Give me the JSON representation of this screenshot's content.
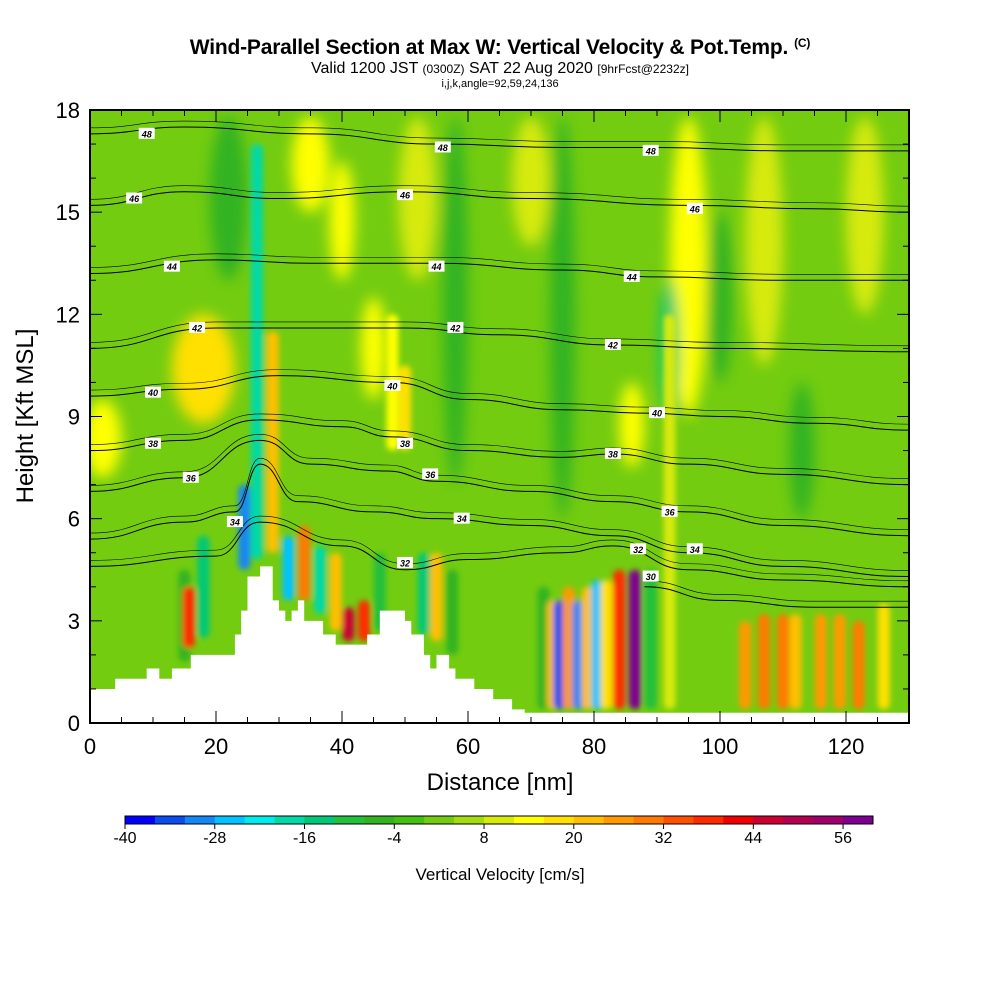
{
  "title": "Wind-Parallel Section at Max W: Vertical Velocity & Pot.Temp.",
  "title_mark": "(C)",
  "subtitle_main": "Valid 1200 JST",
  "subtitle_z": "(0300Z)",
  "subtitle_date": "SAT 22 Aug 2020",
  "subtitle_fcst": "[9hrFcst@2232z]",
  "params": "i,j,k,angle=92,59,24,136",
  "chart_data": {
    "type": "heatmap",
    "xlabel": "Distance [nm]",
    "ylabel": "Height [Kft MSL]",
    "xlim": [
      0,
      130
    ],
    "ylim": [
      0,
      18
    ],
    "x_ticks": [
      "0",
      "20",
      "40",
      "60",
      "80",
      "100",
      "120"
    ],
    "y_ticks": [
      "0",
      "3",
      "6",
      "9",
      "12",
      "15",
      "18"
    ],
    "colorbar": {
      "title": "Vertical Velocity [cm/s]",
      "min": -40,
      "max": 60,
      "step": 4,
      "tick_labels": [
        "-40",
        "-28",
        "-16",
        "-4",
        "8",
        "20",
        "32",
        "44",
        "56"
      ],
      "colors": [
        "#0000ff",
        "#0a4cf0",
        "#1487f5",
        "#00c3ff",
        "#00ecec",
        "#00d9a8",
        "#00c878",
        "#22c03c",
        "#33b320",
        "#44c010",
        "#73cc10",
        "#a4dc10",
        "#d7ea08",
        "#ffff00",
        "#ffe000",
        "#ffc000",
        "#ff9a00",
        "#ff7a00",
        "#ff5000",
        "#ff2a00",
        "#f00000",
        "#cc0033",
        "#b40050",
        "#a0006e",
        "#7d0090"
      ]
    },
    "terrain_kft": [
      [
        0,
        1
      ],
      [
        4,
        1
      ],
      [
        4,
        1.3
      ],
      [
        9,
        1.3
      ],
      [
        9,
        1.6
      ],
      [
        11,
        1.6
      ],
      [
        11,
        1.3
      ],
      [
        13,
        1.3
      ],
      [
        13,
        1.6
      ],
      [
        16,
        1.6
      ],
      [
        16,
        2
      ],
      [
        23,
        2
      ],
      [
        23,
        2.6
      ],
      [
        24,
        2.6
      ],
      [
        24,
        3.3
      ],
      [
        25,
        3.3
      ],
      [
        25,
        4.3
      ],
      [
        27,
        4.3
      ],
      [
        27,
        4.6
      ],
      [
        29,
        4.6
      ],
      [
        29,
        3.6
      ],
      [
        30,
        3.6
      ],
      [
        30,
        3.3
      ],
      [
        31,
        3.3
      ],
      [
        31,
        3
      ],
      [
        32,
        3
      ],
      [
        32,
        3.3
      ],
      [
        33,
        3.3
      ],
      [
        33,
        3.6
      ],
      [
        34,
        3.6
      ],
      [
        34,
        3
      ],
      [
        37,
        3
      ],
      [
        37,
        2.6
      ],
      [
        39,
        2.6
      ],
      [
        39,
        2.3
      ],
      [
        44,
        2.3
      ],
      [
        44,
        2.6
      ],
      [
        46,
        2.6
      ],
      [
        46,
        3.3
      ],
      [
        50,
        3.3
      ],
      [
        50,
        3
      ],
      [
        51,
        3
      ],
      [
        51,
        2.6
      ],
      [
        53,
        2.6
      ],
      [
        53,
        2
      ],
      [
        54,
        2
      ],
      [
        54,
        1.6
      ],
      [
        55,
        1.6
      ],
      [
        55,
        2
      ],
      [
        57,
        2
      ],
      [
        57,
        1.6
      ],
      [
        58,
        1.6
      ],
      [
        58,
        1.3
      ],
      [
        61,
        1.3
      ],
      [
        61,
        1
      ],
      [
        64,
        1
      ],
      [
        64,
        0.7
      ],
      [
        67,
        0.7
      ],
      [
        67,
        0.4
      ],
      [
        69,
        0.4
      ],
      [
        69,
        0.3
      ],
      [
        130,
        0.3
      ]
    ],
    "wave_columns": [
      {
        "x": 15,
        "w": -6,
        "bottom": 1.8,
        "top": 4.5
      },
      {
        "x": 15.7,
        "w": 36,
        "bottom": 2.2,
        "top": 4.0
      },
      {
        "x": 18,
        "w": -14,
        "bottom": 2.5,
        "top": 5.5
      },
      {
        "x": 24.5,
        "w": -30,
        "bottom": 4.5,
        "top": 7.0
      },
      {
        "x": 26.5,
        "w": -20,
        "bottom": 4.8,
        "top": 17.0
      },
      {
        "x": 29,
        "w": 20,
        "bottom": 5.0,
        "top": 11.5
      },
      {
        "x": 31.5,
        "w": -28,
        "bottom": 3.6,
        "top": 5.5
      },
      {
        "x": 34,
        "w": 30,
        "bottom": 3.6,
        "top": 5.8
      },
      {
        "x": 36.5,
        "w": -18,
        "bottom": 3.2,
        "top": 5.2
      },
      {
        "x": 39,
        "w": 20,
        "bottom": 2.7,
        "top": 5.0
      },
      {
        "x": 41,
        "w": 44,
        "bottom": 2.4,
        "top": 3.4
      },
      {
        "x": 43.5,
        "w": 36,
        "bottom": 2.4,
        "top": 3.6
      },
      {
        "x": 46,
        "w": -10,
        "bottom": 2.7,
        "top": 5.0
      },
      {
        "x": 48,
        "w": 12,
        "bottom": 8.0,
        "top": 12.0
      },
      {
        "x": 50,
        "w": 16,
        "bottom": 8.0,
        "top": 10.5
      },
      {
        "x": 53,
        "w": -14,
        "bottom": 2.6,
        "top": 5.0
      },
      {
        "x": 55,
        "w": 20,
        "bottom": 2.4,
        "top": 5.0
      },
      {
        "x": 57.5,
        "w": -8,
        "bottom": 2.0,
        "top": 4.5
      },
      {
        "x": 72,
        "w": -8,
        "bottom": 0.4,
        "top": 4.0
      },
      {
        "x": 73.5,
        "w": 20,
        "bottom": 0.4,
        "top": 3.6
      },
      {
        "x": 74.5,
        "w": -36,
        "bottom": 0.4,
        "top": 3.6
      },
      {
        "x": 76,
        "w": 24,
        "bottom": 0.4,
        "top": 4.0
      },
      {
        "x": 77.5,
        "w": -32,
        "bottom": 0.4,
        "top": 3.6
      },
      {
        "x": 79,
        "w": 20,
        "bottom": 0.4,
        "top": 4.0
      },
      {
        "x": 80.5,
        "w": -28,
        "bottom": 0.4,
        "top": 4.2
      },
      {
        "x": 82,
        "w": 16,
        "bottom": 0.4,
        "top": 4.2
      },
      {
        "x": 84,
        "w": 36,
        "bottom": 0.4,
        "top": 4.5
      },
      {
        "x": 86.5,
        "w": 56,
        "bottom": 0.4,
        "top": 4.5
      },
      {
        "x": 89,
        "w": -12,
        "bottom": 0.4,
        "top": 4.5
      },
      {
        "x": 92,
        "w": 8,
        "bottom": 0.4,
        "top": 12.0
      },
      {
        "x": 104,
        "w": 24,
        "bottom": 0.4,
        "top": 3.0
      },
      {
        "x": 107,
        "w": 28,
        "bottom": 0.4,
        "top": 3.2
      },
      {
        "x": 110,
        "w": 28,
        "bottom": 0.4,
        "top": 3.2
      },
      {
        "x": 112,
        "w": 20,
        "bottom": 0.4,
        "top": 3.2
      },
      {
        "x": 116,
        "w": 24,
        "bottom": 0.4,
        "top": 3.2
      },
      {
        "x": 119,
        "w": 24,
        "bottom": 0.4,
        "top": 3.2
      },
      {
        "x": 122,
        "w": 28,
        "bottom": 0.4,
        "top": 3.0
      },
      {
        "x": 126,
        "w": 16,
        "bottom": 0.4,
        "top": 3.5
      }
    ],
    "broad_features": [
      {
        "x": 2,
        "w": 12,
        "bottom": 7.2,
        "top": 9.5,
        "halfwidth": 3
      },
      {
        "x": 18,
        "w": 16,
        "bottom": 8.8,
        "top": 12.0,
        "halfwidth": 5
      },
      {
        "x": 40,
        "w": 12,
        "bottom": 13.0,
        "top": 16.5,
        "halfwidth": 2
      },
      {
        "x": 45,
        "w": 12,
        "bottom": 9.5,
        "top": 12.5,
        "halfwidth": 2
      },
      {
        "x": 35,
        "w": 12,
        "bottom": 15.0,
        "top": 17.8,
        "halfwidth": 3
      },
      {
        "x": 52,
        "w": 8,
        "bottom": 13.0,
        "top": 17.8,
        "halfwidth": 3
      },
      {
        "x": 70,
        "w": 8,
        "bottom": 14.0,
        "top": 17.8,
        "halfwidth": 3
      },
      {
        "x": 86,
        "w": 12,
        "bottom": 7.5,
        "top": 10.0,
        "halfwidth": 2
      },
      {
        "x": 95,
        "w": 12,
        "bottom": 9.0,
        "top": 17.8,
        "halfwidth": 3
      },
      {
        "x": 22,
        "w": -8,
        "bottom": 13.0,
        "top": 17.8,
        "halfwidth": 3
      },
      {
        "x": 58,
        "w": -6,
        "bottom": 7.0,
        "top": 17.8,
        "halfwidth": 2
      },
      {
        "x": 75,
        "w": -6,
        "bottom": 6.0,
        "top": 17.8,
        "halfwidth": 2
      },
      {
        "x": 92,
        "w": -14,
        "bottom": 9.0,
        "top": 13.0,
        "halfwidth": 1.5
      },
      {
        "x": 107,
        "w": 8,
        "bottom": 10.5,
        "top": 17.8,
        "halfwidth": 3
      },
      {
        "x": 100,
        "w": -8,
        "bottom": 10.0,
        "top": 15.0,
        "halfwidth": 2
      },
      {
        "x": 113,
        "w": -6,
        "bottom": 6.0,
        "top": 10.0,
        "halfwidth": 2
      },
      {
        "x": 123,
        "w": 8,
        "bottom": 12.0,
        "top": 17.8,
        "halfwidth": 3
      }
    ],
    "isentropes": [
      {
        "label": "30",
        "points": [
          [
            88,
            4.0
          ],
          [
            100,
            3.6
          ],
          [
            115,
            3.4
          ],
          [
            130,
            3.4
          ]
        ]
      },
      {
        "label": "32",
        "points": [
          [
            0,
            4.6
          ],
          [
            20,
            4.9
          ],
          [
            27,
            5.9
          ],
          [
            40,
            5.2
          ],
          [
            50,
            4.5
          ],
          [
            60,
            4.8
          ],
          [
            75,
            5.0
          ],
          [
            83,
            5.2
          ],
          [
            95,
            4.5
          ],
          [
            110,
            4.2
          ],
          [
            130,
            4.0
          ]
        ]
      },
      {
        "label": "34",
        "points": [
          [
            0,
            5.4
          ],
          [
            15,
            5.9
          ],
          [
            23,
            6.2
          ],
          [
            27,
            7.6
          ],
          [
            33,
            6.5
          ],
          [
            45,
            6.2
          ],
          [
            55,
            6.0
          ],
          [
            70,
            5.8
          ],
          [
            83,
            5.5
          ],
          [
            95,
            5.0
          ],
          [
            110,
            4.6
          ],
          [
            130,
            4.3
          ]
        ]
      },
      {
        "label": "36",
        "points": [
          [
            0,
            6.8
          ],
          [
            15,
            7.2
          ],
          [
            27,
            8.3
          ],
          [
            35,
            7.6
          ],
          [
            47,
            7.4
          ],
          [
            55,
            7.1
          ],
          [
            70,
            6.8
          ],
          [
            83,
            6.5
          ],
          [
            95,
            6.2
          ],
          [
            110,
            5.8
          ],
          [
            130,
            5.5
          ]
        ]
      },
      {
        "label": "38",
        "points": [
          [
            0,
            8.0
          ],
          [
            15,
            8.3
          ],
          [
            27,
            8.9
          ],
          [
            40,
            8.7
          ],
          [
            48,
            8.4
          ],
          [
            60,
            8.0
          ],
          [
            75,
            7.8
          ],
          [
            83,
            7.9
          ],
          [
            95,
            7.6
          ],
          [
            110,
            7.3
          ],
          [
            130,
            7.0
          ]
        ]
      },
      {
        "label": "40",
        "points": [
          [
            0,
            9.6
          ],
          [
            15,
            9.8
          ],
          [
            30,
            10.2
          ],
          [
            48,
            10.0
          ],
          [
            60,
            9.5
          ],
          [
            75,
            9.2
          ],
          [
            88,
            9.1
          ],
          [
            100,
            9.0
          ],
          [
            115,
            8.8
          ],
          [
            130,
            8.6
          ]
        ]
      },
      {
        "label": "42",
        "points": [
          [
            0,
            11.0
          ],
          [
            20,
            11.6
          ],
          [
            35,
            11.6
          ],
          [
            50,
            11.6
          ],
          [
            65,
            11.4
          ],
          [
            83,
            11.1
          ],
          [
            100,
            11.0
          ],
          [
            130,
            10.9
          ]
        ]
      },
      {
        "label": "44",
        "points": [
          [
            0,
            13.2
          ],
          [
            20,
            13.6
          ],
          [
            35,
            13.5
          ],
          [
            55,
            13.5
          ],
          [
            75,
            13.3
          ],
          [
            90,
            13.1
          ],
          [
            110,
            13.0
          ],
          [
            130,
            13.0
          ]
        ]
      },
      {
        "label": "46",
        "points": [
          [
            0,
            15.2
          ],
          [
            15,
            15.6
          ],
          [
            30,
            15.4
          ],
          [
            50,
            15.6
          ],
          [
            70,
            15.4
          ],
          [
            95,
            15.2
          ],
          [
            115,
            15.1
          ],
          [
            130,
            15.0
          ]
        ]
      },
      {
        "label": "48",
        "points": [
          [
            0,
            17.3
          ],
          [
            15,
            17.5
          ],
          [
            35,
            17.3
          ],
          [
            55,
            17.0
          ],
          [
            75,
            16.9
          ],
          [
            90,
            16.9
          ],
          [
            110,
            16.8
          ],
          [
            130,
            16.8
          ]
        ]
      }
    ],
    "contour_labels": [
      {
        "text": "48",
        "x": 9,
        "y": 17.3
      },
      {
        "text": "48",
        "x": 56,
        "y": 16.9
      },
      {
        "text": "48",
        "x": 89,
        "y": 16.8
      },
      {
        "text": "46",
        "x": 7,
        "y": 15.4
      },
      {
        "text": "46",
        "x": 50,
        "y": 15.5
      },
      {
        "text": "46",
        "x": 96,
        "y": 15.1
      },
      {
        "text": "44",
        "x": 13,
        "y": 13.4
      },
      {
        "text": "44",
        "x": 55,
        "y": 13.4
      },
      {
        "text": "44",
        "x": 86,
        "y": 13.1
      },
      {
        "text": "42",
        "x": 17,
        "y": 11.6
      },
      {
        "text": "42",
        "x": 58,
        "y": 11.6
      },
      {
        "text": "42",
        "x": 83,
        "y": 11.1
      },
      {
        "text": "40",
        "x": 10,
        "y": 9.7
      },
      {
        "text": "40",
        "x": 48,
        "y": 9.9
      },
      {
        "text": "40",
        "x": 90,
        "y": 9.1
      },
      {
        "text": "38",
        "x": 10,
        "y": 8.2
      },
      {
        "text": "38",
        "x": 50,
        "y": 8.2
      },
      {
        "text": "38",
        "x": 83,
        "y": 7.9
      },
      {
        "text": "36",
        "x": 16,
        "y": 7.2
      },
      {
        "text": "36",
        "x": 54,
        "y": 7.3
      },
      {
        "text": "36",
        "x": 92,
        "y": 6.2
      },
      {
        "text": "34",
        "x": 23,
        "y": 5.9
      },
      {
        "text": "34",
        "x": 59,
        "y": 6.0
      },
      {
        "text": "34",
        "x": 96,
        "y": 5.1
      },
      {
        "text": "32",
        "x": 50,
        "y": 4.7
      },
      {
        "text": "32",
        "x": 87,
        "y": 5.1
      },
      {
        "text": "30",
        "x": 89,
        "y": 4.3
      }
    ]
  }
}
